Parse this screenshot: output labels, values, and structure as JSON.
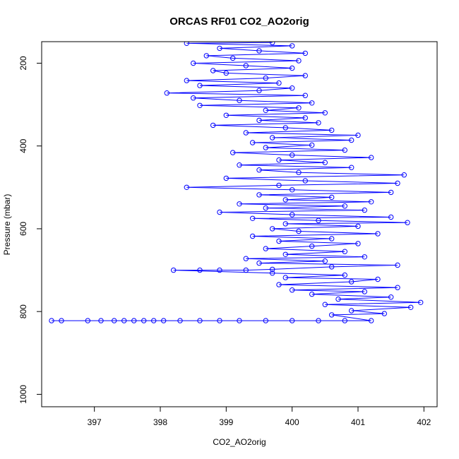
{
  "chart_data": {
    "type": "scatter",
    "title": "ORCAS RF01 CO2_AO2orig",
    "xlabel": "CO2_AO2orig",
    "ylabel": "Pressure (mbar)",
    "xlim": [
      396.2,
      402.2
    ],
    "ylim": [
      1030,
      148
    ],
    "y_reversed": true,
    "x_ticks": [
      "397",
      "398",
      "399",
      "400",
      "401",
      "402"
    ],
    "y_ticks": [
      "200",
      "400",
      "600",
      "800",
      "1000"
    ],
    "grid": false,
    "legend": "none",
    "colors": {
      "series": "#0000ff",
      "axis": "#000000"
    },
    "series": [
      {
        "style": "line+open-circle",
        "points": [
          [
            396.35,
            822
          ],
          [
            396.5,
            822
          ],
          [
            396.9,
            822
          ],
          [
            397.1,
            822
          ],
          [
            397.3,
            822
          ],
          [
            397.45,
            822
          ],
          [
            397.6,
            822
          ],
          [
            397.75,
            822
          ],
          [
            397.9,
            822
          ],
          [
            398.05,
            822
          ],
          [
            398.3,
            822
          ],
          [
            398.6,
            822
          ],
          [
            398.9,
            822
          ],
          [
            399.2,
            822
          ],
          [
            399.6,
            822
          ],
          [
            400.0,
            822
          ],
          [
            400.4,
            822
          ],
          [
            400.8,
            822
          ],
          [
            401.2,
            822
          ],
          [
            400.6,
            808
          ],
          [
            401.4,
            805
          ],
          [
            400.9,
            798
          ],
          [
            401.8,
            790
          ],
          [
            400.5,
            783
          ],
          [
            401.95,
            778
          ],
          [
            400.7,
            770
          ],
          [
            401.5,
            765
          ],
          [
            400.3,
            758
          ],
          [
            401.1,
            752
          ],
          [
            400.0,
            748
          ],
          [
            401.6,
            742
          ],
          [
            399.8,
            735
          ],
          [
            400.9,
            728
          ],
          [
            401.3,
            722
          ],
          [
            399.9,
            718
          ],
          [
            400.8,
            712
          ],
          [
            399.7,
            707
          ],
          [
            398.2,
            700
          ],
          [
            398.6,
            700
          ],
          [
            398.9,
            700
          ],
          [
            399.3,
            700
          ],
          [
            399.7,
            698
          ],
          [
            400.6,
            692
          ],
          [
            401.6,
            688
          ],
          [
            399.5,
            683
          ],
          [
            400.5,
            678
          ],
          [
            399.3,
            672
          ],
          [
            401.1,
            668
          ],
          [
            399.9,
            662
          ],
          [
            400.8,
            655
          ],
          [
            399.6,
            648
          ],
          [
            400.3,
            642
          ],
          [
            401.0,
            636
          ],
          [
            399.8,
            630
          ],
          [
            400.6,
            624
          ],
          [
            399.4,
            618
          ],
          [
            401.3,
            612
          ],
          [
            400.1,
            606
          ],
          [
            399.7,
            600
          ],
          [
            401.0,
            594
          ],
          [
            399.9,
            588
          ],
          [
            401.75,
            585
          ],
          [
            400.4,
            580
          ],
          [
            399.4,
            575
          ],
          [
            401.5,
            572
          ],
          [
            400.0,
            566
          ],
          [
            398.9,
            560
          ],
          [
            401.1,
            555
          ],
          [
            399.6,
            550
          ],
          [
            400.8,
            545
          ],
          [
            399.2,
            540
          ],
          [
            401.2,
            535
          ],
          [
            399.9,
            530
          ],
          [
            400.6,
            524
          ],
          [
            399.5,
            518
          ],
          [
            401.5,
            512
          ],
          [
            400.0,
            506
          ],
          [
            398.4,
            500
          ],
          [
            399.8,
            495
          ],
          [
            401.6,
            490
          ],
          [
            400.2,
            484
          ],
          [
            399.0,
            478
          ],
          [
            401.7,
            470
          ],
          [
            400.1,
            464
          ],
          [
            399.5,
            458
          ],
          [
            400.9,
            452
          ],
          [
            399.2,
            446
          ],
          [
            400.5,
            440
          ],
          [
            399.8,
            434
          ],
          [
            401.2,
            428
          ],
          [
            400.0,
            422
          ],
          [
            399.1,
            416
          ],
          [
            400.8,
            410
          ],
          [
            399.6,
            404
          ],
          [
            400.3,
            398
          ],
          [
            399.4,
            392
          ],
          [
            400.9,
            386
          ],
          [
            399.7,
            380
          ],
          [
            401.0,
            374
          ],
          [
            399.3,
            368
          ],
          [
            400.6,
            362
          ],
          [
            399.9,
            356
          ],
          [
            398.8,
            350
          ],
          [
            400.4,
            344
          ],
          [
            399.5,
            338
          ],
          [
            400.2,
            332
          ],
          [
            399.0,
            326
          ],
          [
            400.5,
            320
          ],
          [
            399.6,
            314
          ],
          [
            400.1,
            308
          ],
          [
            398.6,
            302
          ],
          [
            400.3,
            296
          ],
          [
            399.2,
            290
          ],
          [
            398.5,
            284
          ],
          [
            400.2,
            278
          ],
          [
            398.1,
            272
          ],
          [
            399.5,
            266
          ],
          [
            400.0,
            260
          ],
          [
            398.6,
            254
          ],
          [
            399.8,
            248
          ],
          [
            398.4,
            242
          ],
          [
            399.6,
            236
          ],
          [
            400.2,
            230
          ],
          [
            399.0,
            224
          ],
          [
            398.8,
            218
          ],
          [
            400.0,
            212
          ],
          [
            399.3,
            206
          ],
          [
            398.5,
            200
          ],
          [
            400.1,
            194
          ],
          [
            399.1,
            188
          ],
          [
            398.7,
            182
          ],
          [
            400.2,
            176
          ],
          [
            399.5,
            170
          ],
          [
            398.9,
            164
          ],
          [
            400.0,
            158
          ],
          [
            398.4,
            152
          ],
          [
            399.7,
            150
          ]
        ]
      }
    ]
  }
}
